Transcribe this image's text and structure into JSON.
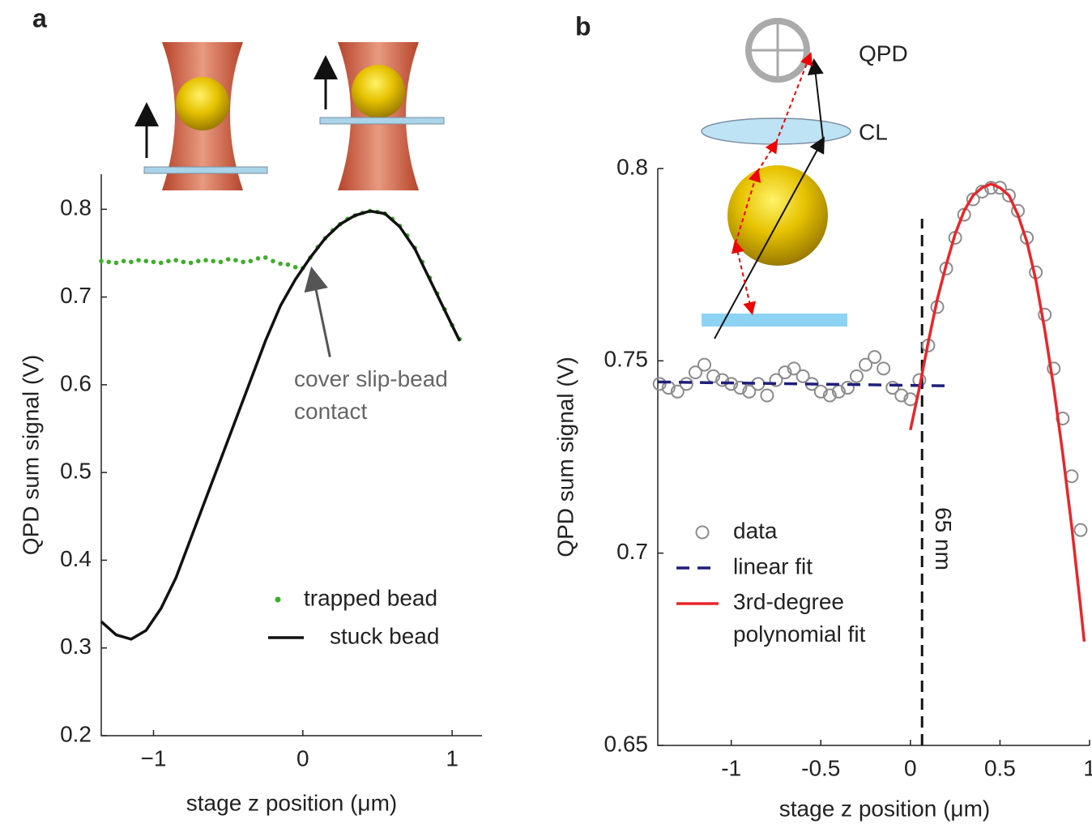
{
  "chart_data": [
    {
      "type": "line",
      "panel_label": "a",
      "x_label": "stage z position (μm)",
      "y_label": "QPD sum signal (V)",
      "xlim": [
        -1.35,
        1.2
      ],
      "ylim": [
        0.2,
        0.84
      ],
      "xticks": [
        {
          "value": -1,
          "label": "−1"
        },
        0,
        1
      ],
      "yticks": [
        0.2,
        0.3,
        0.4,
        0.5,
        0.6,
        0.7,
        0.8
      ],
      "legend": "lower right",
      "annotation": {
        "text": "cover slip-bead contact",
        "x": 0.03,
        "y": 0.735
      },
      "series": [
        {
          "name": "trapped bead",
          "color": "#3fae2a",
          "style": "dots",
          "x": [
            -1.35,
            -1.3,
            -1.25,
            -1.2,
            -1.15,
            -1.1,
            -1.05,
            -1.0,
            -0.95,
            -0.9,
            -0.85,
            -0.8,
            -0.75,
            -0.7,
            -0.65,
            -0.6,
            -0.55,
            -0.5,
            -0.45,
            -0.4,
            -0.35,
            -0.3,
            -0.25,
            -0.2,
            -0.15,
            -0.1,
            -0.05,
            0.0,
            0.05,
            0.1,
            0.15,
            0.2,
            0.25,
            0.3,
            0.35,
            0.4,
            0.45,
            0.5,
            0.55,
            0.6,
            0.65,
            0.7,
            0.75,
            0.8,
            0.85,
            0.9,
            0.95,
            1.0,
            1.05
          ],
          "values": [
            0.741,
            0.74,
            0.739,
            0.741,
            0.74,
            0.742,
            0.741,
            0.74,
            0.739,
            0.741,
            0.742,
            0.74,
            0.739,
            0.741,
            0.742,
            0.741,
            0.74,
            0.743,
            0.742,
            0.74,
            0.741,
            0.744,
            0.745,
            0.741,
            0.738,
            0.737,
            0.734,
            0.733,
            0.745,
            0.757,
            0.767,
            0.776,
            0.783,
            0.789,
            0.793,
            0.796,
            0.798,
            0.797,
            0.795,
            0.789,
            0.781,
            0.77,
            0.756,
            0.74,
            0.722,
            0.704,
            0.686,
            0.668,
            0.652
          ]
        },
        {
          "name": "stuck bead",
          "color": "#111111",
          "style": "line",
          "x": [
            -1.35,
            -1.25,
            -1.15,
            -1.05,
            -0.95,
            -0.85,
            -0.75,
            -0.65,
            -0.55,
            -0.45,
            -0.35,
            -0.25,
            -0.15,
            -0.05,
            0.05,
            0.15,
            0.25,
            0.35,
            0.45,
            0.55,
            0.65,
            0.75,
            0.85,
            0.95,
            1.05
          ],
          "values": [
            0.33,
            0.315,
            0.31,
            0.32,
            0.345,
            0.38,
            0.425,
            0.47,
            0.515,
            0.56,
            0.605,
            0.65,
            0.69,
            0.72,
            0.745,
            0.767,
            0.783,
            0.793,
            0.798,
            0.795,
            0.78,
            0.755,
            0.72,
            0.685,
            0.65
          ]
        }
      ]
    },
    {
      "type": "line",
      "panel_label": "b",
      "x_label": "stage z position (μm)",
      "y_label": "QPD sum signal (V)",
      "xlim": [
        -1.41,
        1
      ],
      "ylim": [
        0.65,
        0.8
      ],
      "xticks": [
        -1,
        -0.5,
        0,
        0.5,
        1
      ],
      "yticks": [
        0.65,
        0.7,
        0.75,
        0.8
      ],
      "legend": "lower left",
      "reference_line": {
        "x": 0.065,
        "label": "65 nm"
      },
      "diagram_labels": [
        "QPD",
        "CL"
      ],
      "series": [
        {
          "name": "data",
          "color": "#8c8c8c",
          "style": "circles",
          "x": [
            -1.4,
            -1.35,
            -1.3,
            -1.25,
            -1.2,
            -1.15,
            -1.1,
            -1.05,
            -1.0,
            -0.95,
            -0.9,
            -0.85,
            -0.8,
            -0.75,
            -0.7,
            -0.65,
            -0.6,
            -0.55,
            -0.5,
            -0.45,
            -0.4,
            -0.35,
            -0.3,
            -0.25,
            -0.2,
            -0.15,
            -0.1,
            -0.05,
            0.0,
            0.05,
            0.1,
            0.15,
            0.2,
            0.25,
            0.3,
            0.35,
            0.4,
            0.45,
            0.5,
            0.55,
            0.6,
            0.65,
            0.7,
            0.75,
            0.8,
            0.85,
            0.9,
            0.95
          ],
          "values": [
            0.744,
            0.743,
            0.742,
            0.744,
            0.747,
            0.749,
            0.746,
            0.745,
            0.744,
            0.743,
            0.742,
            0.744,
            0.741,
            0.745,
            0.747,
            0.748,
            0.746,
            0.744,
            0.742,
            0.741,
            0.742,
            0.743,
            0.746,
            0.749,
            0.751,
            0.748,
            0.743,
            0.741,
            0.74,
            0.745,
            0.754,
            0.764,
            0.774,
            0.782,
            0.788,
            0.792,
            0.794,
            0.795,
            0.795,
            0.793,
            0.789,
            0.782,
            0.773,
            0.762,
            0.748,
            0.735,
            0.72,
            0.706
          ]
        },
        {
          "name": "linear fit",
          "color": "#1f1f7a",
          "style": "dashed",
          "x": [
            -1.41,
            0.2
          ],
          "values": [
            0.7445,
            0.7435
          ]
        },
        {
          "name": "3rd-degree polynomial fit",
          "color": "#e8262a",
          "style": "line",
          "x": [
            0.0,
            0.05,
            0.1,
            0.15,
            0.2,
            0.25,
            0.3,
            0.35,
            0.4,
            0.45,
            0.5,
            0.55,
            0.6,
            0.65,
            0.7,
            0.75,
            0.8,
            0.85,
            0.9,
            0.95,
            0.97
          ],
          "values": [
            0.732,
            0.743,
            0.755,
            0.766,
            0.775,
            0.783,
            0.789,
            0.793,
            0.795,
            0.796,
            0.795,
            0.793,
            0.788,
            0.781,
            0.771,
            0.758,
            0.743,
            0.726,
            0.707,
            0.686,
            0.677
          ]
        }
      ]
    }
  ]
}
